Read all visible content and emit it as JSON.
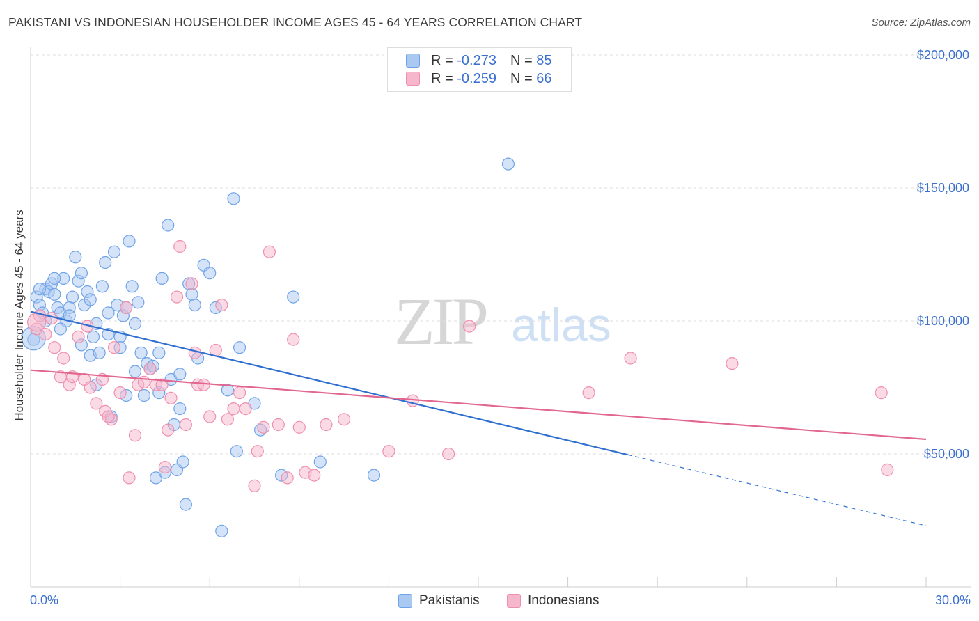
{
  "header": {
    "title": "PAKISTANI VS INDONESIAN HOUSEHOLDER INCOME AGES 45 - 64 YEARS CORRELATION CHART",
    "source": "Source: ZipAtlas.com"
  },
  "watermark": {
    "zip": "ZIP",
    "atlas": "atlas"
  },
  "legend": {
    "rows": [
      {
        "r_label": "R =",
        "r_value": "-0.273",
        "n_label": "N =",
        "n_value": "85",
        "color": "#a9c8f2"
      },
      {
        "r_label": "R =",
        "r_value": "-0.259",
        "n_label": "N =",
        "n_value": "66",
        "color": "#f6b6cb"
      }
    ]
  },
  "bottom_legend": {
    "items": [
      {
        "label": "Pakistanis",
        "color": "#a9c8f2"
      },
      {
        "label": "Indonesians",
        "color": "#f6b6cb"
      }
    ]
  },
  "chart_data": {
    "type": "scatter",
    "title": "PAKISTANI VS INDONESIAN HOUSEHOLDER INCOME AGES 45 - 64 YEARS CORRELATION CHART",
    "xlabel": "",
    "ylabel": "Householder Income Ages 45 - 64 years",
    "xlim": [
      0,
      30
    ],
    "ylim": [
      0,
      205000
    ],
    "x_tick_labels": [
      "0.0%",
      "30.0%"
    ],
    "y_ticks": [
      50000,
      100000,
      150000,
      200000
    ],
    "y_tick_labels": [
      "$50,000",
      "$100,000",
      "$150,000",
      "$200,000"
    ],
    "grid": true,
    "legend_position": "top-center",
    "series": [
      {
        "name": "Pakistanis",
        "color": "#6fa3e8",
        "fill": "#a9c8f2",
        "trend": {
          "x": [
            0,
            20,
            30
          ],
          "y": [
            103500,
            49700,
            23000
          ],
          "solid_until": 20,
          "line_color": "#2f6fd0"
        },
        "points": [
          [
            0.1,
            93000
          ],
          [
            0.2,
            109000
          ],
          [
            0.3,
            106000
          ],
          [
            0.4,
            103000
          ],
          [
            0.5,
            112000
          ],
          [
            0.6,
            111000
          ],
          [
            0.7,
            114000
          ],
          [
            0.8,
            110000
          ],
          [
            0.9,
            105000
          ],
          [
            1.0,
            103000
          ],
          [
            1.1,
            116000
          ],
          [
            1.2,
            100000
          ],
          [
            1.3,
            105000
          ],
          [
            1.4,
            109000
          ],
          [
            1.5,
            124000
          ],
          [
            1.6,
            115000
          ],
          [
            1.7,
            91000
          ],
          [
            1.8,
            106000
          ],
          [
            1.9,
            111000
          ],
          [
            2.0,
            87000
          ],
          [
            2.1,
            94000
          ],
          [
            2.2,
            76000
          ],
          [
            2.3,
            88000
          ],
          [
            2.4,
            113000
          ],
          [
            2.5,
            122000
          ],
          [
            2.6,
            103000
          ],
          [
            2.7,
            64000
          ],
          [
            2.8,
            126000
          ],
          [
            2.9,
            106000
          ],
          [
            3.0,
            94000
          ],
          [
            3.1,
            102000
          ],
          [
            3.2,
            105000
          ],
          [
            3.3,
            130000
          ],
          [
            3.4,
            113000
          ],
          [
            3.5,
            99000
          ],
          [
            3.6,
            107000
          ],
          [
            3.7,
            88000
          ],
          [
            3.8,
            72000
          ],
          [
            3.9,
            84000
          ],
          [
            4.0,
            82000
          ],
          [
            4.1,
            83000
          ],
          [
            4.2,
            41000
          ],
          [
            4.3,
            88000
          ],
          [
            4.4,
            116000
          ],
          [
            4.5,
            43000
          ],
          [
            4.6,
            136000
          ],
          [
            4.7,
            78000
          ],
          [
            4.8,
            61000
          ],
          [
            4.9,
            44000
          ],
          [
            5.0,
            80000
          ],
          [
            5.1,
            47000
          ],
          [
            5.2,
            31000
          ],
          [
            5.3,
            114000
          ],
          [
            5.4,
            110000
          ],
          [
            5.5,
            106000
          ],
          [
            5.6,
            86000
          ],
          [
            5.8,
            121000
          ],
          [
            6.0,
            118000
          ],
          [
            6.2,
            105000
          ],
          [
            6.4,
            21000
          ],
          [
            6.6,
            74000
          ],
          [
            6.8,
            146000
          ],
          [
            6.9,
            51000
          ],
          [
            7.0,
            90000
          ],
          [
            7.5,
            69000
          ],
          [
            7.7,
            59000
          ],
          [
            8.4,
            42000
          ],
          [
            8.8,
            109000
          ],
          [
            9.7,
            47000
          ],
          [
            11.5,
            42000
          ],
          [
            16.0,
            159000
          ],
          [
            0.3,
            112000
          ],
          [
            0.5,
            100000
          ],
          [
            0.8,
            116000
          ],
          [
            1.0,
            97000
          ],
          [
            1.7,
            118000
          ],
          [
            2.0,
            108000
          ],
          [
            2.6,
            95000
          ],
          [
            3.0,
            90000
          ],
          [
            3.5,
            81000
          ],
          [
            4.3,
            73000
          ],
          [
            5.0,
            67000
          ],
          [
            1.3,
            102000
          ],
          [
            2.2,
            99000
          ],
          [
            3.2,
            72000
          ]
        ]
      },
      {
        "name": "Indonesians",
        "color": "#ef8fad",
        "fill": "#f6b6cb",
        "trend": {
          "x": [
            0,
            30
          ],
          "y": [
            81500,
            55500
          ],
          "solid_until": 30,
          "line_color": "#e2678e"
        },
        "points": [
          [
            0.2,
            97000
          ],
          [
            0.3,
            102000
          ],
          [
            0.5,
            95000
          ],
          [
            0.7,
            101000
          ],
          [
            0.8,
            90000
          ],
          [
            1.0,
            79000
          ],
          [
            1.1,
            86000
          ],
          [
            1.3,
            76000
          ],
          [
            1.4,
            79000
          ],
          [
            1.6,
            94000
          ],
          [
            1.8,
            78000
          ],
          [
            1.9,
            98000
          ],
          [
            2.0,
            75000
          ],
          [
            2.2,
            69000
          ],
          [
            2.4,
            78000
          ],
          [
            2.5,
            66000
          ],
          [
            2.7,
            63000
          ],
          [
            2.8,
            90000
          ],
          [
            3.0,
            73000
          ],
          [
            3.2,
            105000
          ],
          [
            3.3,
            41000
          ],
          [
            3.5,
            57000
          ],
          [
            3.6,
            76000
          ],
          [
            3.8,
            77000
          ],
          [
            4.0,
            82000
          ],
          [
            4.2,
            76000
          ],
          [
            4.4,
            76000
          ],
          [
            4.5,
            45000
          ],
          [
            4.6,
            59000
          ],
          [
            4.7,
            71000
          ],
          [
            4.9,
            109000
          ],
          [
            5.0,
            128000
          ],
          [
            5.2,
            61000
          ],
          [
            5.4,
            114000
          ],
          [
            5.5,
            88000
          ],
          [
            5.6,
            76000
          ],
          [
            5.8,
            76000
          ],
          [
            6.0,
            64000
          ],
          [
            6.2,
            89000
          ],
          [
            6.4,
            106000
          ],
          [
            6.6,
            63000
          ],
          [
            6.8,
            67000
          ],
          [
            7.0,
            73000
          ],
          [
            7.2,
            67000
          ],
          [
            7.5,
            38000
          ],
          [
            7.6,
            51000
          ],
          [
            7.8,
            60000
          ],
          [
            8.0,
            126000
          ],
          [
            8.3,
            61000
          ],
          [
            8.6,
            41000
          ],
          [
            8.8,
            93000
          ],
          [
            9.0,
            60000
          ],
          [
            9.2,
            43000
          ],
          [
            9.5,
            42000
          ],
          [
            9.9,
            61000
          ],
          [
            10.5,
            63000
          ],
          [
            12.0,
            51000
          ],
          [
            12.8,
            70000
          ],
          [
            14.0,
            50000
          ],
          [
            14.7,
            98000
          ],
          [
            18.7,
            73000
          ],
          [
            20.1,
            86000
          ],
          [
            23.5,
            84000
          ],
          [
            28.5,
            73000
          ],
          [
            28.7,
            44000
          ],
          [
            2.6,
            64000
          ]
        ]
      }
    ]
  }
}
